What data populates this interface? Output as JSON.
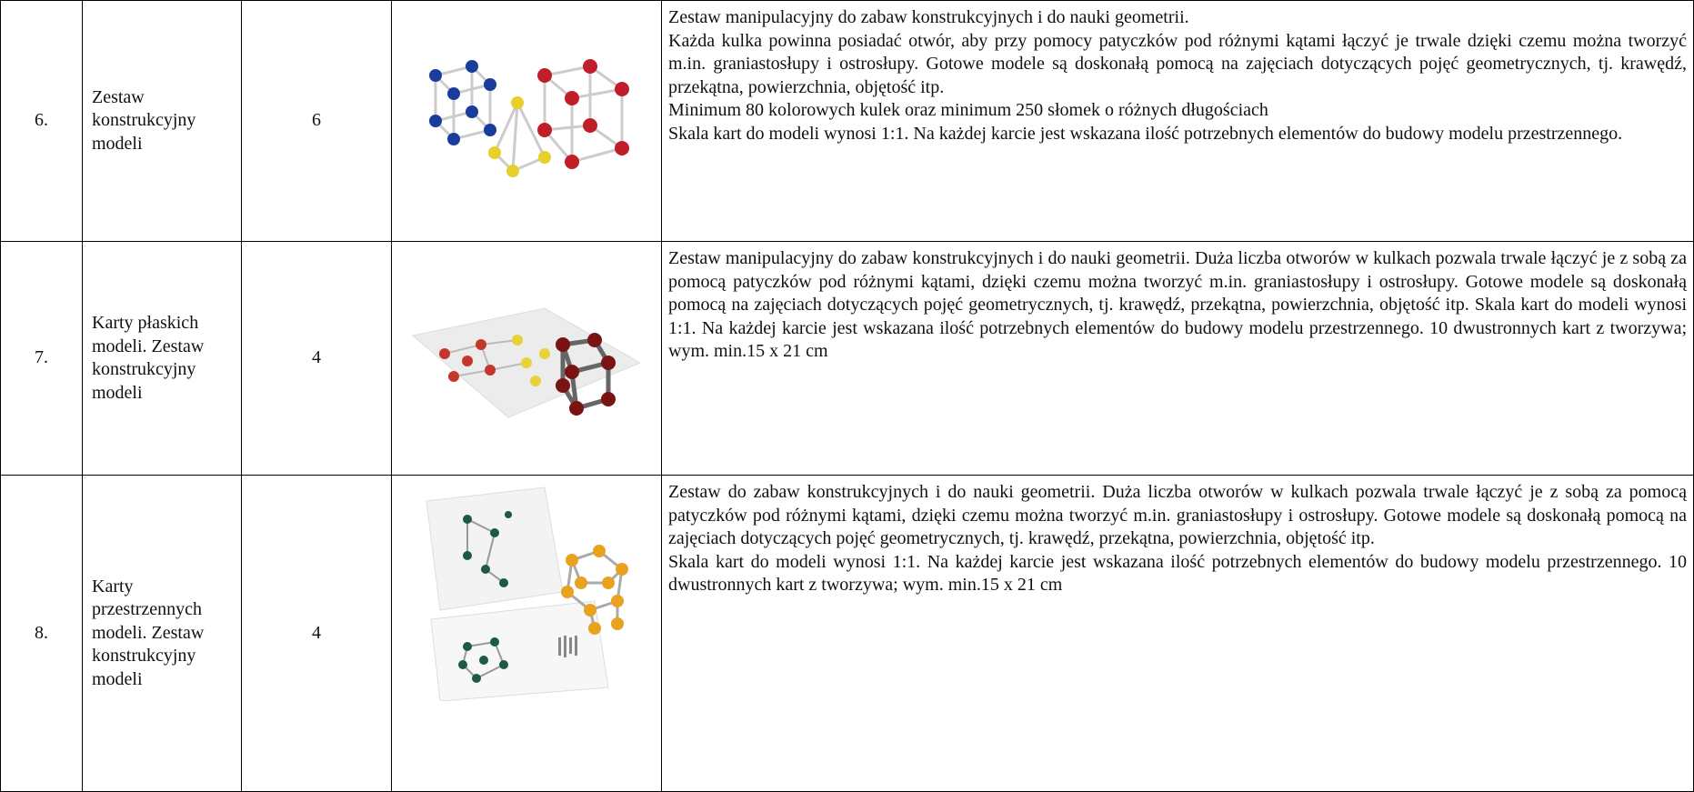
{
  "table": {
    "rows": [
      {
        "lp": "6.",
        "name": "Zestaw konstrukcyjny modeli",
        "qty": "6",
        "description": [
          "Zestaw manipulacyjny do zabaw konstrukcyjnych i do nauki geometrii.",
          "Każda kulka powinna posiadać otwór, aby przy pomocy patyczków pod różnymi kątami łączyć je trwale dzięki czemu można tworzyć m.in. graniastosłupy i ostrosłupy. Gotowe modele są doskonałą pomocą na zajęciach dotyczących pojęć geometrycznych, tj. krawędź, przekątna,  powierzchnia, objętość itp.",
          "Minimum 80 kolorowych kulek oraz minimum 250 słomek o różnych długościach",
          "Skala kart do modeli wynosi 1:1. Na każdej karcie jest wskazana ilość potrzebnych elementów do budowy modelu przestrzennego."
        ]
      },
      {
        "lp": "7.",
        "name": "Karty płaskich modeli. Zestaw konstrukcyjny modeli",
        "qty": "4",
        "description": [
          "Zestaw manipulacyjny do zabaw konstrukcyjnych i do nauki geometrii. Duża liczba otworów w kulkach pozwala trwale łączyć je z sobą za pomocą patyczków pod różnymi kątami, dzięki czemu można tworzyć m.in. graniastosłupy i ostrosłupy. Gotowe modele są doskonałą pomocą na zajęciach dotyczących pojęć geometrycznych, tj. krawędź, przekątna, powierzchnia, objętość itp. Skala kart do modeli wynosi 1:1. Na każdej karcie jest wskazana ilość potrzebnych elementów do budowy modelu przestrzennego. 10 dwustronnych kart z tworzywa; wym. min.15 x 21 cm"
        ]
      },
      {
        "lp": "8.",
        "name": "Karty przestrzennych modeli. Zestaw konstrukcyjny modeli",
        "qty": "4",
        "description": [
          "Zestaw do zabaw konstrukcyjnych i do nauki geometrii. Duża liczba otworów w kulkach pozwala trwale łączyć je z sobą za pomocą patyczków pod różnymi kątami, dzięki czemu można tworzyć m.in. graniastosłupy i ostrosłupy. Gotowe modele są doskonałą pomocą na zajęciach dotyczących pojęć geometrycznych, tj. krawędź, przekątna, powierzchnia, objętość itp.",
          "Skala kart do modeli wynosi 1:1. Na każdej karcie jest wskazana ilość potrzebnych elementów do budowy modelu przestrzennego. 10 dwustronnych kart z tworzywa; wym. min.15 x 21 cm"
        ]
      }
    ]
  }
}
